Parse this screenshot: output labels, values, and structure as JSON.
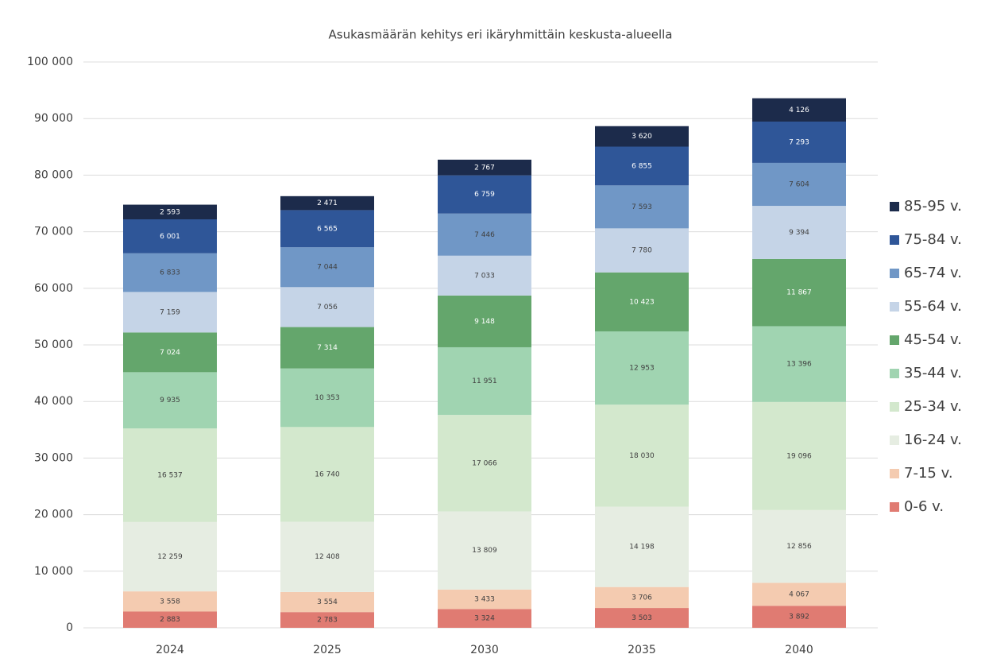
{
  "chart_data": {
    "type": "stacked_bar",
    "title": "Asukasmäärän kehitys eri ikäryhmittäin keskusta-alueella",
    "categories": [
      "2024",
      "2025",
      "2030",
      "2035",
      "2040"
    ],
    "ylim": [
      0,
      100000
    ],
    "yticks": [
      0,
      {
        "value": 10000,
        "label": "10 000"
      },
      {
        "value": 20000,
        "label": "20 000"
      },
      {
        "value": 30000,
        "label": "30 000"
      },
      {
        "value": 40000,
        "label": "40 000"
      },
      {
        "value": 50000,
        "label": "50 000"
      },
      {
        "value": 60000,
        "label": "60 000"
      },
      {
        "value": 70000,
        "label": "70 000"
      },
      {
        "value": 80000,
        "label": "80 000"
      },
      {
        "value": 90000,
        "label": "90 000"
      },
      {
        "value": 100000,
        "label": "100 000"
      }
    ],
    "grid": true,
    "legend": "right",
    "series": [
      {
        "name": "0-6 v.",
        "color": "#e07b72",
        "values": [
          2883,
          2783,
          3324,
          3503,
          3892
        ],
        "value_labels": [
          "2 883",
          "2 783",
          "3 324",
          "3 503",
          "3 892"
        ]
      },
      {
        "name": "7-15 v.",
        "color": "#f4cbb0",
        "values": [
          3558,
          3554,
          3433,
          3706,
          4067
        ],
        "value_labels": [
          "3 558",
          "3 554",
          "3 433",
          "3 706",
          "4 067"
        ]
      },
      {
        "name": "16-24 v.",
        "color": "#e6ede2",
        "values": [
          12259,
          12408,
          13809,
          14198,
          12856
        ],
        "value_labels": [
          "12 259",
          "12 408",
          "13 809",
          "14 198",
          "12 856"
        ]
      },
      {
        "name": "25-34 v.",
        "color": "#d3e8cd",
        "values": [
          16537,
          16740,
          17066,
          18030,
          19096
        ],
        "value_labels": [
          "16 537",
          "16 740",
          "17 066",
          "18 030",
          "19 096"
        ]
      },
      {
        "name": "35-44 v.",
        "color": "#a0d4b1",
        "values": [
          9935,
          10353,
          11951,
          12953,
          13396
        ],
        "value_labels": [
          "9 935",
          "10 353",
          "11 951",
          "12 953",
          "13 396"
        ]
      },
      {
        "name": "45-54 v.",
        "color": "#64a66c",
        "values": [
          7024,
          7314,
          9148,
          10423,
          11867
        ],
        "value_labels": [
          "7 024",
          "7 314",
          "9 148",
          "10 423",
          "11 867"
        ]
      },
      {
        "name": "55-64 v.",
        "color": "#c5d4e7",
        "values": [
          7159,
          7056,
          7033,
          7780,
          9394
        ],
        "value_labels": [
          "7 159",
          "7 056",
          "7 033",
          "7 780",
          "9 394"
        ]
      },
      {
        "name": "65-74 v.",
        "color": "#7097c6",
        "values": [
          6833,
          7044,
          7446,
          7593,
          7604
        ],
        "value_labels": [
          "6 833",
          "7 044",
          "7 446",
          "7 593",
          "7 604"
        ]
      },
      {
        "name": "75-84 v.",
        "color": "#2f5698",
        "values": [
          6001,
          6565,
          6759,
          6855,
          7293
        ],
        "value_labels": [
          "6 001",
          "6 565",
          "6 759",
          "6 855",
          "7 293"
        ]
      },
      {
        "name": "85-95 v.",
        "color": "#1c2b4b",
        "values": [
          2593,
          2471,
          2767,
          3620,
          4126
        ],
        "value_labels": [
          "2 593",
          "2 471",
          "2 767",
          "3 620",
          "4 126"
        ]
      }
    ]
  }
}
